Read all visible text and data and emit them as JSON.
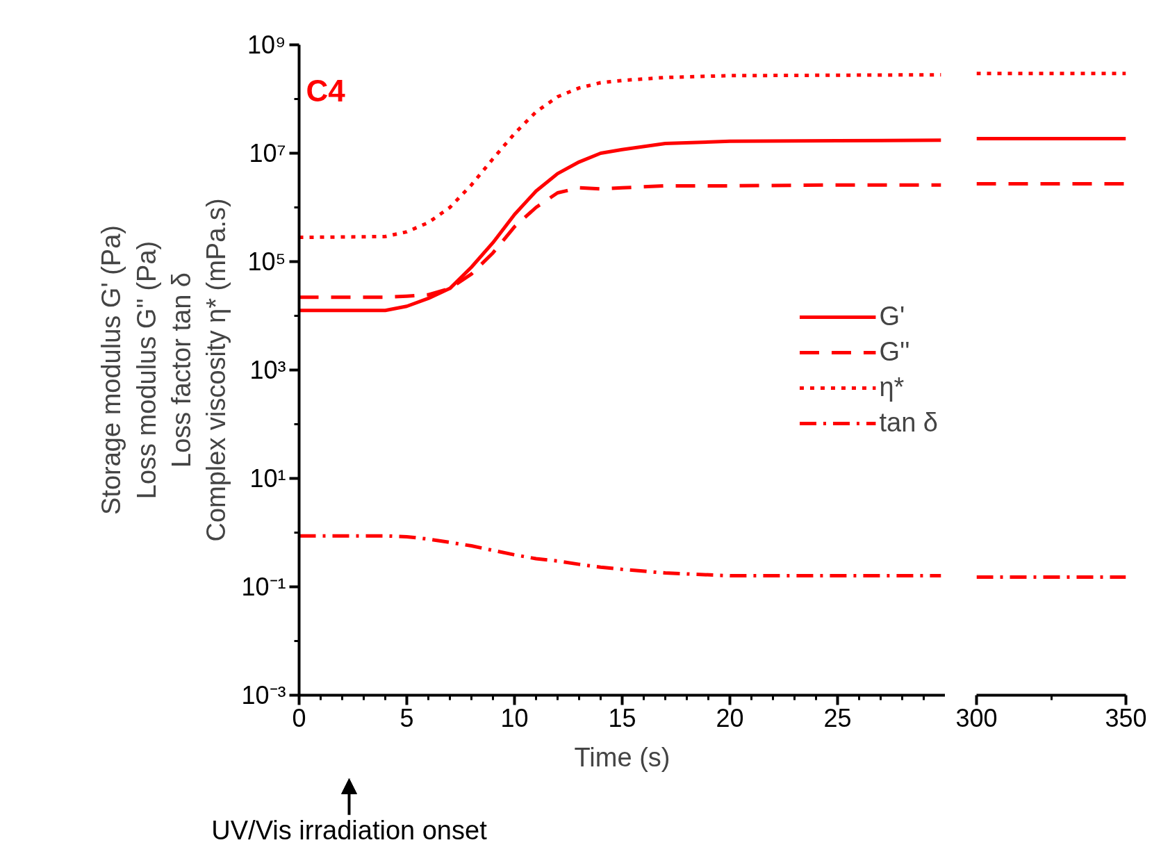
{
  "chart_data": [
    {
      "type": "line",
      "xlabel": "Time (s)",
      "ylabel": "Storage modulus G' (Pa)\nLoss modulus G'' (Pa)\nLoss factor tan δ\nComplex viscosity η* (mPa.s)",
      "log": "y",
      "legend": "right",
      "x": [
        0,
        4,
        5,
        6,
        7,
        8,
        9,
        10,
        11,
        12,
        13,
        14,
        15,
        17,
        20,
        25,
        29.8
      ],
      "xlim": [
        0,
        30
      ],
      "xticks": [
        0,
        {
          "value": 1,
          "label": null
        },
        {
          "value": 2,
          "label": null
        },
        {
          "value": 3,
          "label": null
        },
        {
          "value": 4,
          "label": null
        },
        5,
        {
          "value": 6,
          "label": null
        },
        {
          "value": 7,
          "label": null
        },
        {
          "value": 8,
          "label": null
        },
        {
          "value": 9,
          "label": null
        },
        10,
        {
          "value": 11,
          "label": null
        },
        {
          "value": 12,
          "label": null
        },
        {
          "value": 13,
          "label": null
        },
        {
          "value": 14,
          "label": null
        },
        15,
        {
          "value": 16,
          "label": null
        },
        {
          "value": 17,
          "label": null
        },
        {
          "value": 18,
          "label": null
        },
        {
          "value": 19,
          "label": null
        },
        20,
        {
          "value": 21,
          "label": null
        },
        {
          "value": 22,
          "label": null
        },
        {
          "value": 23,
          "label": null
        },
        {
          "value": 24,
          "label": null
        },
        25,
        {
          "value": 26,
          "label": null
        },
        {
          "value": 27,
          "label": null
        },
        {
          "value": 28,
          "label": null
        },
        {
          "value": 29,
          "label": null
        }
      ],
      "ylim": [
        0.001,
        1000000000
      ],
      "yticks": [
        {
          "value": 0.001,
          "label": "10⁻³"
        },
        {
          "value": 0.01,
          "label": null
        },
        {
          "value": 0.1,
          "label": "10⁻¹"
        },
        {
          "value": 1,
          "label": null
        },
        {
          "value": 10,
          "label": "10¹"
        },
        {
          "value": 100,
          "label": null
        },
        {
          "value": 1000,
          "label": "10³"
        },
        {
          "value": 10000,
          "label": null
        },
        {
          "value": 100000,
          "label": "10⁵"
        },
        {
          "value": 1000000,
          "label": null
        },
        {
          "value": 10000000,
          "label": "10⁷"
        },
        {
          "value": 100000000,
          "label": null
        },
        {
          "value": 1000000000,
          "label": "10⁹"
        }
      ],
      "annotations": [
        "C4",
        "UV/Vis irradiation onset"
      ],
      "series": [
        {
          "name": "G'",
          "color": "#ff0000",
          "line_style": "solid",
          "values": [
            12600,
            12600,
            15000,
            21000,
            32000,
            79000,
            224000,
            740000,
            2000000,
            4200000,
            6900000,
            10000000,
            11700000,
            15100000,
            16600000,
            17000000,
            17400000
          ]
        },
        {
          "name": "G''",
          "color": "#ff0000",
          "line_style": "dashed",
          "values": [
            22000,
            22000,
            23000,
            24500,
            32000,
            59000,
            145000,
            440000,
            1000000,
            1860000,
            2300000,
            2200000,
            2300000,
            2500000,
            2500000,
            2600000,
            2600000
          ]
        },
        {
          "name": "η*",
          "color": "#ff0000",
          "line_style": "dotted",
          "values": [
            280000,
            290000,
            355000,
            525000,
            1000000,
            2600000,
            7900000,
            23000000,
            58000000,
            110000000,
            160000000,
            200000000,
            220000000,
            250000000,
            270000000,
            275000000,
            280000000
          ]
        },
        {
          "name": "tan δ",
          "color": "#ff0000",
          "line_style": "dashdot",
          "values": [
            0.87,
            0.87,
            0.84,
            0.76,
            0.66,
            0.57,
            0.47,
            0.39,
            0.33,
            0.3,
            0.26,
            0.23,
            0.21,
            0.18,
            0.16,
            0.16,
            0.16
          ]
        }
      ]
    },
    {
      "type": "line",
      "log": "y",
      "tick_labels": "x",
      "x": [
        300,
        350
      ],
      "xlim": [
        300,
        350
      ],
      "xticks": [
        300,
        {
          "value": 325,
          "label": null
        },
        350
      ],
      "ylim": [
        0.001,
        1000000000
      ],
      "series": [
        {
          "color": "#ff0000",
          "line_style": "solid",
          "values": [
            18600000,
            18600000
          ]
        },
        {
          "color": "#ff0000",
          "line_style": "dashed",
          "values": [
            2720000,
            2720000
          ]
        },
        {
          "color": "#ff0000",
          "line_style": "dotted",
          "values": [
            297000000,
            297000000
          ]
        },
        {
          "color": "#ff0000",
          "line_style": "dashdot",
          "values": [
            0.151,
            0.151
          ]
        }
      ]
    }
  ]
}
